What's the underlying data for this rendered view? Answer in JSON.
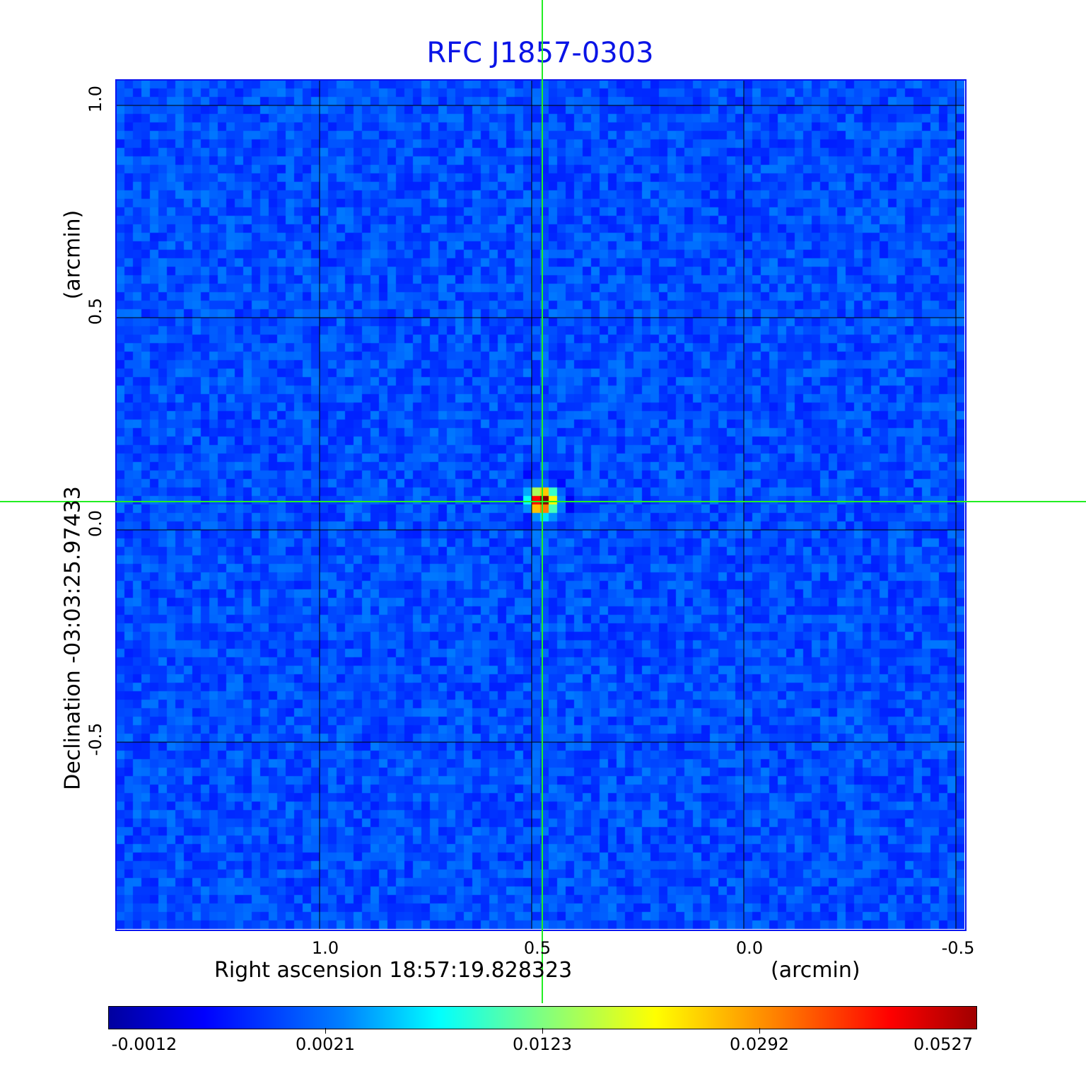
{
  "chart_data": {
    "type": "heatmap",
    "title": "RFC J1857-0303",
    "xlabel": "Right ascension  18:57:19.828323",
    "xunit": "(arcmin)",
    "ylabel": "Declination  -03:03:25.97433",
    "yunit": "(arcmin)",
    "x_ticks": [
      "1.0",
      "0.5",
      "0.0",
      "-0.5"
    ],
    "x_tick_values": [
      1.0,
      0.5,
      0.0,
      -0.5
    ],
    "y_ticks": [
      "1.0",
      "0.5",
      "0.0",
      "-0.5"
    ],
    "y_tick_values": [
      1.0,
      0.5,
      0.0,
      -0.5
    ],
    "xlim": [
      1.48,
      -0.52
    ],
    "ylim": [
      -0.94,
      1.06
    ],
    "grid": true,
    "crosshair": {
      "x": 0.475,
      "y": 0.068,
      "color": "#22ee22"
    },
    "source_peak": {
      "x": 0.475,
      "y": 0.068,
      "value": 0.0527
    },
    "colormap": "jet",
    "colorbar": {
      "ticks": [
        "-0.0012",
        "0.0021",
        "0.0123",
        "0.0292",
        "0.0527"
      ],
      "min": -0.0012,
      "max": 0.0527,
      "position": "bottom"
    },
    "colors": {
      "title": "#0a14e6",
      "frame": "#0a14f0",
      "background_map": "#1a5cff"
    }
  }
}
